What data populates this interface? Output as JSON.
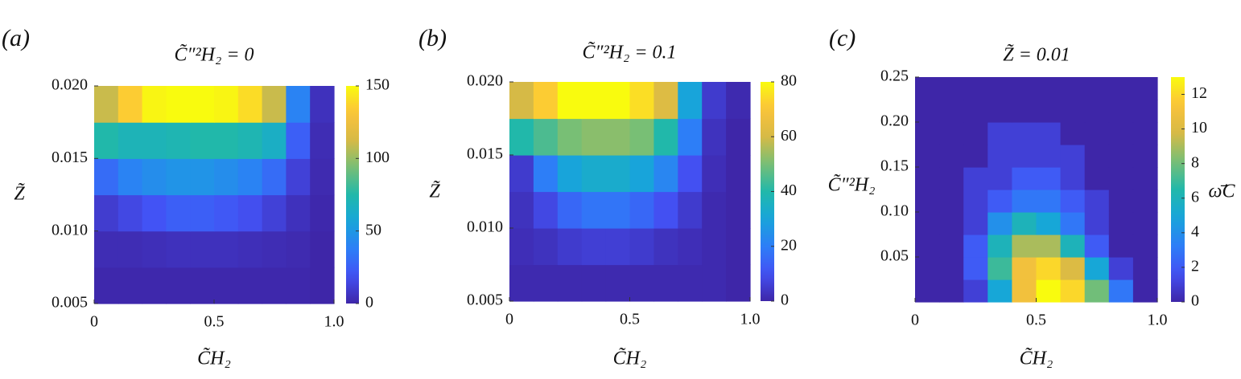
{
  "chart_data": [
    {
      "type": "heatmap",
      "panel_label": "(a)",
      "title": "C̃″²H₂ = 0",
      "x_label": "C̃H₂",
      "y_label": "Z̃",
      "x": [
        0.05,
        0.15,
        0.25,
        0.35,
        0.45,
        0.55,
        0.65,
        0.75,
        0.85,
        0.95
      ],
      "y": [
        0.00625,
        0.00875,
        0.01125,
        0.01375,
        0.01625,
        0.01875
      ],
      "z": [
        [
          1,
          1,
          1,
          1,
          1,
          1,
          1,
          1,
          1,
          0
        ],
        [
          3,
          3,
          4,
          5,
          5,
          5,
          4,
          3,
          2,
          0
        ],
        [
          10,
          15,
          20,
          25,
          25,
          22,
          18,
          12,
          5,
          1
        ],
        [
          30,
          40,
          45,
          48,
          48,
          45,
          40,
          30,
          12,
          2
        ],
        [
          75,
          70,
          70,
          72,
          75,
          75,
          72,
          65,
          25,
          3
        ],
        [
          110,
          135,
          148,
          150,
          150,
          148,
          140,
          110,
          40,
          5
        ]
      ],
      "xlim": [
        0,
        1
      ],
      "ylim": [
        0.005,
        0.02
      ],
      "xticks": [
        0,
        0.5,
        {
          "value": 1,
          "label": "1.0"
        }
      ],
      "yticks": [
        0.005,
        {
          "value": 0.01,
          "label": "0.010"
        },
        0.015,
        {
          "value": 0.02,
          "label": "0.020"
        }
      ],
      "clim": [
        0,
        150
      ],
      "cticks": [
        0,
        50,
        100,
        150
      ],
      "colormap": "parula"
    },
    {
      "type": "heatmap",
      "panel_label": "(b)",
      "title": "C̃″²H₂ = 0.1",
      "x_label": "C̃H₂",
      "y_label": "Z̃",
      "x": [
        0.05,
        0.15,
        0.25,
        0.35,
        0.45,
        0.55,
        0.65,
        0.75,
        0.85,
        0.95
      ],
      "y": [
        0.00625,
        0.00875,
        0.01125,
        0.01375,
        0.01625,
        0.01875
      ],
      "z": [
        [
          1,
          1,
          1,
          1,
          1,
          1,
          1,
          1,
          1,
          0
        ],
        [
          2,
          3,
          5,
          6,
          6,
          5,
          3,
          2,
          1,
          0
        ],
        [
          3,
          8,
          15,
          18,
          18,
          15,
          10,
          5,
          1,
          0
        ],
        [
          5,
          20,
          30,
          33,
          33,
          30,
          22,
          10,
          2,
          0
        ],
        [
          40,
          45,
          50,
          52,
          52,
          50,
          40,
          20,
          3,
          0
        ],
        [
          60,
          72,
          80,
          80,
          80,
          75,
          62,
          30,
          5,
          1
        ]
      ],
      "xlim": [
        0,
        1
      ],
      "ylim": [
        0.005,
        0.02
      ],
      "xticks": [
        0,
        0.5,
        {
          "value": 1,
          "label": "1.0"
        }
      ],
      "yticks": [
        0.005,
        {
          "value": 0.01,
          "label": "0.010"
        },
        0.015,
        {
          "value": 0.02,
          "label": "0.020"
        }
      ],
      "clim": [
        0,
        80
      ],
      "cticks": [
        0,
        20,
        40,
        60,
        80
      ],
      "colormap": "parula"
    },
    {
      "type": "heatmap",
      "panel_label": "(c)",
      "title": "Z̃ = 0.01",
      "x_label": "C̃H₂",
      "y_label": "C̃″²H₂",
      "colorbar_label": "ω̄̇C",
      "x": [
        0.05,
        0.15,
        0.25,
        0.35,
        0.45,
        0.55,
        0.65,
        0.75,
        0.85,
        0.95
      ],
      "y": [
        0.0125,
        0.0375,
        0.0625,
        0.0875,
        0.1125,
        0.1375,
        0.1625,
        0.1875,
        0.2125,
        0.2375
      ],
      "z": [
        [
          0,
          0,
          1,
          5,
          11,
          13,
          12,
          8,
          3,
          0
        ],
        [
          0,
          0,
          2,
          7,
          11,
          12,
          10,
          5,
          1,
          0
        ],
        [
          0,
          0,
          2,
          6,
          9,
          9,
          6,
          2,
          0,
          0
        ],
        [
          0,
          0,
          1,
          4,
          6,
          5,
          3,
          1,
          0,
          0
        ],
        [
          0,
          0,
          1,
          2,
          3,
          3,
          2,
          1,
          0,
          0
        ],
        [
          0,
          0,
          1,
          1,
          2,
          2,
          1,
          0,
          0,
          0
        ],
        [
          0,
          0,
          0,
          1,
          1,
          1,
          1,
          0,
          0,
          0
        ],
        [
          0,
          0,
          0,
          1,
          1,
          1,
          0,
          0,
          0,
          0
        ],
        [
          0,
          0,
          0,
          0,
          0,
          0,
          0,
          0,
          0,
          0
        ],
        [
          0,
          0,
          0,
          0,
          0,
          0,
          0,
          0,
          0,
          0
        ]
      ],
      "xlim": [
        0,
        1
      ],
      "ylim": [
        0,
        0.25
      ],
      "xticks": [
        0,
        0.5,
        {
          "value": 1,
          "label": "1.0"
        }
      ],
      "yticks": [
        0.05,
        {
          "value": 0.1,
          "label": "0.10"
        },
        0.15,
        {
          "value": 0.2,
          "label": "0.20"
        },
        0.25
      ],
      "clim": [
        0,
        13
      ],
      "cticks": [
        0,
        2,
        4,
        6,
        8,
        10,
        12
      ],
      "colormap": "parula"
    }
  ]
}
